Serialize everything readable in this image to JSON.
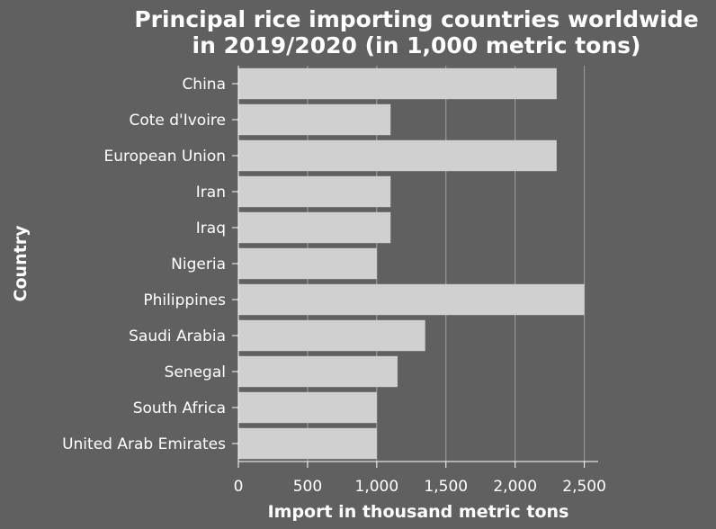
{
  "chart_data": {
    "type": "bar",
    "orientation": "horizontal",
    "title_lines": [
      "Principal rice importing countries worldwide",
      "in 2019/2020 (in 1,000 metric tons)"
    ],
    "xlabel": "Import in thousand metric tons",
    "ylabel": "Country",
    "categories": [
      "China",
      "Cote d'Ivoire",
      "European Union",
      "Iran",
      "Iraq",
      "Nigeria",
      "Philippines",
      "Saudi Arabia",
      "Senegal",
      "South Africa",
      "United Arab Emirates"
    ],
    "values": [
      2300,
      1100,
      2300,
      1100,
      1100,
      1000,
      2500,
      1350,
      1150,
      1000,
      1000
    ],
    "xlim": [
      0,
      2600
    ],
    "xticks": [
      0,
      500,
      1000,
      1500,
      2000,
      2500
    ],
    "xtick_labels": [
      "0",
      "500",
      "1,000",
      "1,500",
      "2,000",
      "2,500"
    ],
    "grid": true,
    "colors": {
      "background": "#606060",
      "plot_background": "#606060",
      "bar": "#d0d0d0",
      "gridline": "#a0a0a0",
      "text": "#ffffff"
    }
  }
}
